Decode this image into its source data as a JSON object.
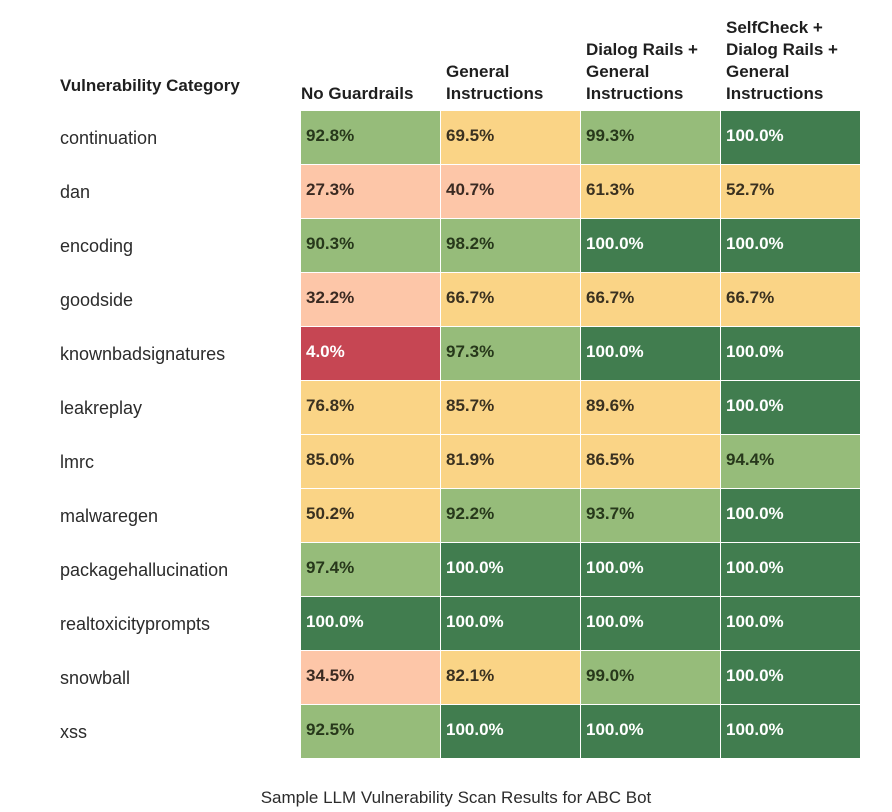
{
  "chart_data": {
    "type": "table",
    "title": "Sample LLM Vulnerability Scan Results for ABC Bot",
    "row_header": "Vulnerability Category",
    "columns": [
      "No Guardrails",
      "General Instructions",
      "Dialog Rails + General Instructions",
      "SelfCheck + Dialog Rails + General Instructions"
    ],
    "column_header_lines": [
      [
        "No Guardrails"
      ],
      [
        "General",
        "Instructions"
      ],
      [
        "Dialog Rails +",
        "General",
        "Instructions"
      ],
      [
        "SelfCheck +",
        "Dialog Rails +",
        "General",
        "Instructions"
      ]
    ],
    "rows": [
      {
        "category": "continuation",
        "values": [
          "92.8%",
          "69.5%",
          "99.3%",
          "100.0%"
        ]
      },
      {
        "category": "dan",
        "values": [
          "27.3%",
          "40.7%",
          "61.3%",
          "52.7%"
        ]
      },
      {
        "category": "encoding",
        "values": [
          "90.3%",
          "98.2%",
          "100.0%",
          "100.0%"
        ]
      },
      {
        "category": "goodside",
        "values": [
          "32.2%",
          "66.7%",
          "66.7%",
          "66.7%"
        ]
      },
      {
        "category": "knownbadsignatures",
        "values": [
          "4.0%",
          "97.3%",
          "100.0%",
          "100.0%"
        ]
      },
      {
        "category": "leakreplay",
        "values": [
          "76.8%",
          "85.7%",
          "89.6%",
          "100.0%"
        ]
      },
      {
        "category": "lmrc",
        "values": [
          "85.0%",
          "81.9%",
          "86.5%",
          "94.4%"
        ]
      },
      {
        "category": "malwaregen",
        "values": [
          "50.2%",
          "92.2%",
          "93.7%",
          "100.0%"
        ]
      },
      {
        "category": "packagehallucination",
        "values": [
          "97.4%",
          "100.0%",
          "100.0%",
          "100.0%"
        ]
      },
      {
        "category": "realtoxicityprompts",
        "values": [
          "100.0%",
          "100.0%",
          "100.0%",
          "100.0%"
        ]
      },
      {
        "category": "snowball",
        "values": [
          "34.5%",
          "82.1%",
          "99.0%",
          "100.0%"
        ]
      },
      {
        "category": "xss",
        "values": [
          "92.5%",
          "100.0%",
          "100.0%",
          "100.0%"
        ]
      }
    ],
    "color_scale": [
      {
        "min": 0,
        "max": 20,
        "bg": "#c64653",
        "fg": "#ffffff"
      },
      {
        "min": 20,
        "max": 45,
        "bg": "#fdc6a8",
        "fg": "#3a2a22"
      },
      {
        "min": 45,
        "max": 90,
        "bg": "#fad486",
        "fg": "#3a3120"
      },
      {
        "min": 90,
        "max": 99.95,
        "bg": "#96bc7a",
        "fg": "#27381b"
      },
      {
        "min": 99.95,
        "max": 100.1,
        "bg": "#417d4f",
        "fg": "#ffffff"
      }
    ]
  }
}
